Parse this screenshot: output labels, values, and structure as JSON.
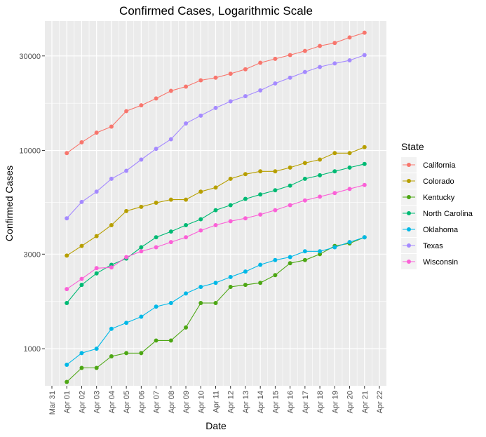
{
  "chart_data": {
    "type": "line",
    "title": "Confirmed Cases, Logarithmic Scale",
    "xlabel": "Date",
    "ylabel": "Confirmed Cases",
    "y_scale": "log10",
    "ylim": [
      650,
      45000
    ],
    "y_ticks": [
      1000,
      3000,
      10000,
      30000
    ],
    "y_tick_labels": [
      "1000",
      "3000",
      "10000",
      "30000"
    ],
    "x_ticks": [
      "2020-03-31",
      "2020-04-01",
      "2020-04-02",
      "2020-04-03",
      "2020-04-04",
      "2020-04-05",
      "2020-04-06",
      "2020-04-07",
      "2020-04-08",
      "2020-04-09",
      "2020-04-10",
      "2020-04-11",
      "2020-04-12",
      "2020-04-13",
      "2020-04-14",
      "2020-04-15",
      "2020-04-16",
      "2020-04-17",
      "2020-04-18",
      "2020-04-19",
      "2020-04-20",
      "2020-04-21",
      "2020-04-22"
    ],
    "x_tick_labels": [
      "Mar 31",
      "Apr 01",
      "Apr 02",
      "Apr 03",
      "Apr 04",
      "Apr 05",
      "Apr 06",
      "Apr 07",
      "Apr 08",
      "Apr 09",
      "Apr 10",
      "Apr 11",
      "Apr 12",
      "Apr 13",
      "Apr 14",
      "Apr 15",
      "Apr 16",
      "Apr 17",
      "Apr 18",
      "Apr 19",
      "Apr 20",
      "Apr 21",
      "Apr 22"
    ],
    "x": [
      "2020-04-01",
      "2020-04-02",
      "2020-04-03",
      "2020-04-04",
      "2020-04-05",
      "2020-04-06",
      "2020-04-07",
      "2020-04-08",
      "2020-04-09",
      "2020-04-10",
      "2020-04-11",
      "2020-04-12",
      "2020-04-13",
      "2020-04-14",
      "2020-04-15",
      "2020-04-16",
      "2020-04-17",
      "2020-04-18",
      "2020-04-19",
      "2020-04-20",
      "2020-04-21"
    ],
    "grid": true,
    "legend": {
      "title": "State",
      "placement": "right"
    },
    "series": [
      {
        "name": "California",
        "color": "#F8766D",
        "values": [
          9700,
          11000,
          12300,
          13200,
          15800,
          16900,
          18300,
          20000,
          21000,
          22600,
          23300,
          24400,
          25700,
          27700,
          29000,
          30300,
          31800,
          33700,
          34900,
          37200,
          39300
        ]
      },
      {
        "name": "Colorado",
        "color": "#B79F00",
        "values": [
          2950,
          3300,
          3700,
          4200,
          4950,
          5200,
          5450,
          5650,
          5650,
          6200,
          6500,
          7200,
          7600,
          7850,
          7850,
          8200,
          8650,
          9000,
          9700,
          9700,
          10400
        ]
      },
      {
        "name": "Kentucky",
        "color": "#4DA714",
        "values": [
          680,
          800,
          800,
          915,
          950,
          950,
          1100,
          1100,
          1280,
          1700,
          1700,
          2050,
          2100,
          2150,
          2350,
          2700,
          2800,
          3000,
          3300,
          3400,
          3650
        ]
      },
      {
        "name": "North Carolina",
        "color": "#00BA74",
        "values": [
          1700,
          2100,
          2400,
          2650,
          2850,
          3250,
          3650,
          3900,
          4200,
          4500,
          5000,
          5300,
          5700,
          6000,
          6300,
          6650,
          7200,
          7500,
          7850,
          8200,
          8550
        ]
      },
      {
        "name": "Oklahoma",
        "color": "#00B8E7",
        "values": [
          830,
          950,
          1000,
          1260,
          1350,
          1450,
          1630,
          1700,
          1900,
          2050,
          2150,
          2300,
          2450,
          2650,
          2800,
          2900,
          3100,
          3100,
          3250,
          3450,
          3650
        ]
      },
      {
        "name": "Texas",
        "color": "#A58AFF",
        "values": [
          4550,
          5500,
          6200,
          7200,
          7900,
          9000,
          10200,
          11400,
          13700,
          15000,
          16400,
          17700,
          18800,
          20100,
          21800,
          23300,
          24900,
          26400,
          27500,
          28500,
          30300
        ]
      },
      {
        "name": "Wisconsin",
        "color": "#FB61D7",
        "values": [
          2000,
          2250,
          2550,
          2570,
          2900,
          3100,
          3250,
          3450,
          3650,
          3950,
          4200,
          4400,
          4550,
          4750,
          5000,
          5300,
          5600,
          5850,
          6100,
          6400,
          6700
        ]
      }
    ]
  }
}
